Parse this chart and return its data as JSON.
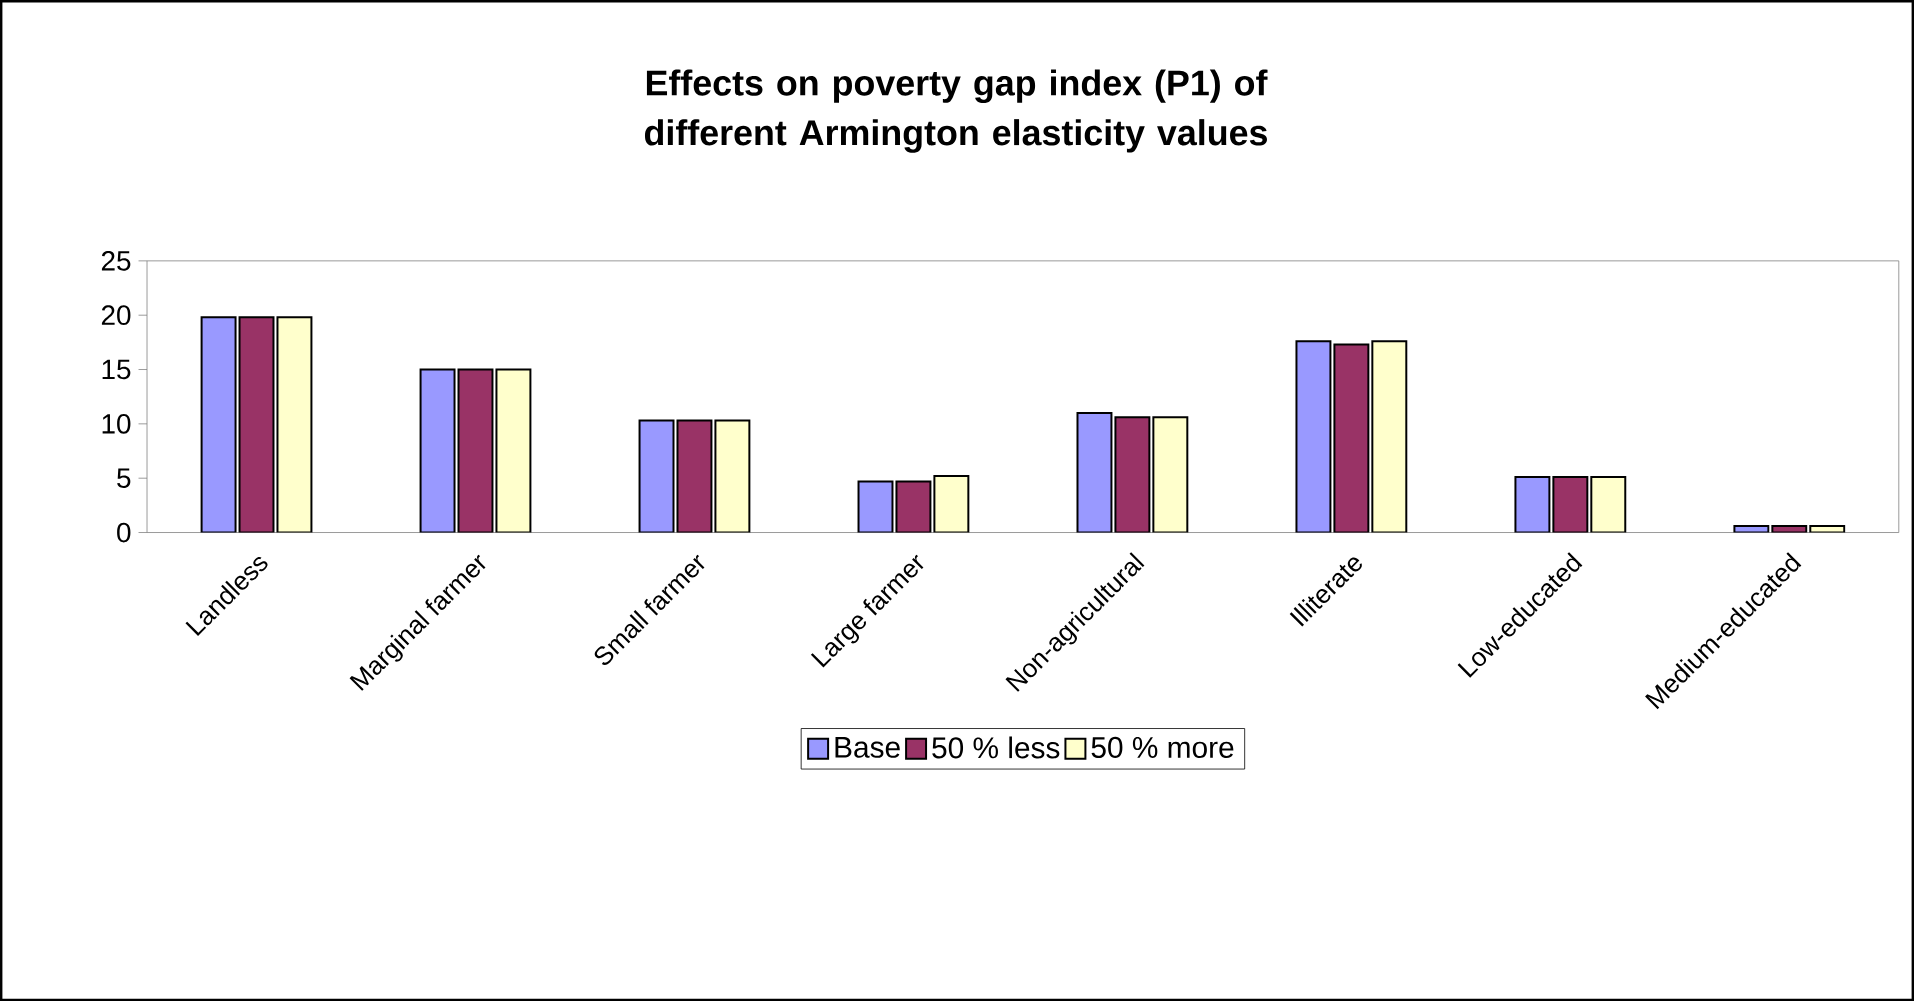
{
  "chart_data": {
    "type": "bar",
    "title": "Effects on poverty gap index (P1) of different Armington elasticity values",
    "categories": [
      "Landless",
      "Marginal farmer",
      "Small farmer",
      "Large farmer",
      "Non-agricultural",
      "Illiterate",
      "Low-educated",
      "Medium-educated"
    ],
    "series": [
      {
        "name": "Base",
        "color": "#9999ff",
        "values": [
          19.8,
          15.0,
          10.3,
          4.7,
          11.0,
          17.6,
          5.1,
          0.6
        ]
      },
      {
        "name": "50 % less",
        "color": "#993366",
        "values": [
          19.8,
          15.0,
          10.3,
          4.7,
          10.6,
          17.3,
          5.1,
          0.6
        ]
      },
      {
        "name": "50 % more",
        "color": "#ffffcc",
        "values": [
          19.8,
          15.0,
          10.3,
          5.2,
          10.6,
          17.6,
          5.1,
          0.6
        ]
      }
    ],
    "ylim": [
      0,
      25
    ],
    "yticks": [
      0,
      5,
      10,
      15,
      20,
      25
    ],
    "grid": false,
    "legend": "bottom"
  }
}
